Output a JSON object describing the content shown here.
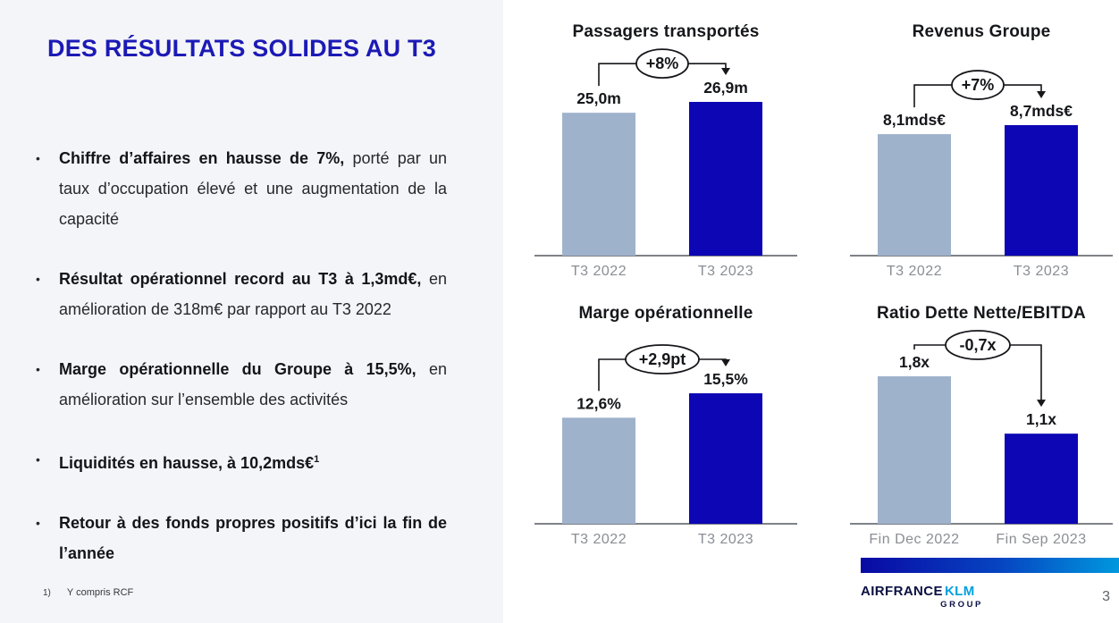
{
  "slide": {
    "title": "DES RÉSULTATS SOLIDES AU T3",
    "bullets": [
      {
        "lead": "Chiffre d’affaires en hausse de 7%,",
        "sup": "",
        "rest": "porté par un taux d’occupation élevé et une augmentation de la capacité"
      },
      {
        "lead": "Résultat opérationnel record au T3 à 1,3md€,",
        "sup": "",
        "rest": "en amélioration de 318m€ par rapport au T3 2022"
      },
      {
        "lead": "Marge opérationnelle du Groupe à 15,5%,",
        "sup": "",
        "rest": "en amélioration sur l’ensemble des activités"
      },
      {
        "lead": "Liquidités en hausse, à 10,2mds€",
        "sup": "1",
        "rest": ""
      },
      {
        "lead": "Retour à des fonds propres positifs d’ici la fin de l’année",
        "sup": "",
        "rest": ""
      }
    ],
    "footnote": {
      "marker": "1)",
      "text": "Y compris RCF"
    },
    "logo": {
      "airfrance": "AIRFRANCE",
      "klm": "KLM",
      "group": "GROUP"
    },
    "page_number": "3"
  },
  "colors": {
    "left_panel_bg": "#F4F5F8",
    "title_blue": "#1C1AB5",
    "bar_previous": "#9FB2CC",
    "bar_current": "#0D06B4",
    "axis_line": "#55585E",
    "axis_label": "#8A8E94",
    "chart_text": "#16171B",
    "gradient_start": "#0909A4",
    "gradient_end": "#0098DE",
    "logo_navy": "#0A1042",
    "logo_klm_blue": "#00A1DE"
  },
  "chart_data": [
    {
      "type": "bar",
      "title": "Passagers transportés",
      "categories": [
        "T3 2022",
        "T3 2023"
      ],
      "values": [
        25.0,
        26.9
      ],
      "value_labels": [
        "25,0m",
        "26,9m"
      ],
      "delta_label": "+8%",
      "legend_position": "none",
      "grid": false
    },
    {
      "type": "bar",
      "title": "Revenus Groupe",
      "categories": [
        "T3 2022",
        "T3 2023"
      ],
      "values": [
        8.1,
        8.7
      ],
      "value_labels": [
        "8,1mds€",
        "8,7mds€"
      ],
      "delta_label": "+7%",
      "legend_position": "none",
      "grid": false
    },
    {
      "type": "bar",
      "title": "Marge opérationnelle",
      "categories": [
        "T3 2022",
        "T3 2023"
      ],
      "values": [
        12.6,
        15.5
      ],
      "value_labels": [
        "12,6%",
        "15,5%"
      ],
      "delta_label": "+2,9pt",
      "legend_position": "none",
      "grid": false
    },
    {
      "type": "bar",
      "title": "Ratio Dette Nette/EBITDA",
      "categories": [
        "Fin Dec 2022",
        "Fin Sep 2023"
      ],
      "values": [
        1.8,
        1.1
      ],
      "value_labels": [
        "1,8x",
        "1,1x"
      ],
      "delta_label": "-0,7x",
      "legend_position": "none",
      "grid": false
    }
  ]
}
